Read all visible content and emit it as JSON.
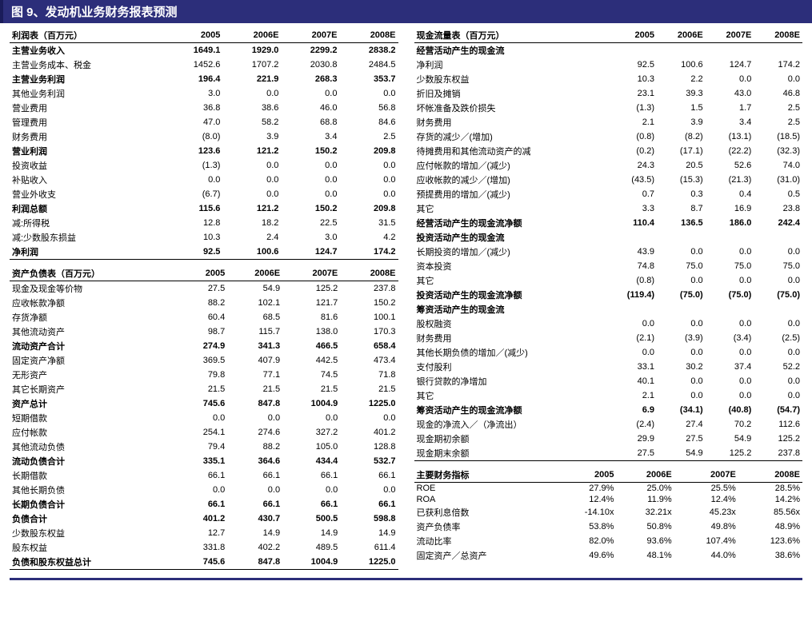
{
  "title": "图 9、发动机业务财务报表预测",
  "colors": {
    "header_bg": "#2c2e7a",
    "header_text": "#ffffff"
  },
  "years": [
    "2005",
    "2006E",
    "2007E",
    "2008E"
  ],
  "income": {
    "header": "利润表（百万元）",
    "rows": [
      {
        "label": "主营业务收入",
        "v": [
          "1649.1",
          "1929.0",
          "2299.2",
          "2838.2"
        ],
        "bold": true,
        "topline": true
      },
      {
        "label": "主营业务成本、税金",
        "v": [
          "1452.6",
          "1707.2",
          "2030.8",
          "2484.5"
        ]
      },
      {
        "label": "主营业务利润",
        "v": [
          "196.4",
          "221.9",
          "268.3",
          "353.7"
        ],
        "bold": true
      },
      {
        "label": "其他业务利润",
        "v": [
          "3.0",
          "0.0",
          "0.0",
          "0.0"
        ]
      },
      {
        "label": "营业费用",
        "v": [
          "36.8",
          "38.6",
          "46.0",
          "56.8"
        ]
      },
      {
        "label": "管理费用",
        "v": [
          "47.0",
          "58.2",
          "68.8",
          "84.6"
        ]
      },
      {
        "label": "财务费用",
        "v": [
          "(8.0)",
          "3.9",
          "3.4",
          "2.5"
        ]
      },
      {
        "label": "营业利润",
        "v": [
          "123.6",
          "121.2",
          "150.2",
          "209.8"
        ],
        "bold": true
      },
      {
        "label": "投资收益",
        "v": [
          "(1.3)",
          "0.0",
          "0.0",
          "0.0"
        ]
      },
      {
        "label": "补贴收入",
        "v": [
          "0.0",
          "0.0",
          "0.0",
          "0.0"
        ]
      },
      {
        "label": "营业外收支",
        "v": [
          "(6.7)",
          "0.0",
          "0.0",
          "0.0"
        ]
      },
      {
        "label": "利润总额",
        "v": [
          "115.6",
          "121.2",
          "150.2",
          "209.8"
        ],
        "bold": true
      },
      {
        "label": "减:所得税",
        "v": [
          "12.8",
          "18.2",
          "22.5",
          "31.5"
        ]
      },
      {
        "label": "减:少数股东损益",
        "v": [
          "10.3",
          "2.4",
          "3.0",
          "4.2"
        ]
      },
      {
        "label": "净利润",
        "v": [
          "92.5",
          "100.6",
          "124.7",
          "174.2"
        ],
        "bold": true,
        "bottomline": true
      }
    ]
  },
  "balance": {
    "header": "资产负债表（百万元）",
    "rows": [
      {
        "label": "现金及现金等价物",
        "v": [
          "27.5",
          "54.9",
          "125.2",
          "237.8"
        ],
        "topline": true
      },
      {
        "label": "应收帐款净额",
        "v": [
          "88.2",
          "102.1",
          "121.7",
          "150.2"
        ]
      },
      {
        "label": "存货净额",
        "v": [
          "60.4",
          "68.5",
          "81.6",
          "100.1"
        ]
      },
      {
        "label": "其他流动资产",
        "v": [
          "98.7",
          "115.7",
          "138.0",
          "170.3"
        ]
      },
      {
        "label": "流动资产合计",
        "v": [
          "274.9",
          "341.3",
          "466.5",
          "658.4"
        ],
        "bold": true
      },
      {
        "label": "固定资产净额",
        "v": [
          "369.5",
          "407.9",
          "442.5",
          "473.4"
        ]
      },
      {
        "label": "无形资产",
        "v": [
          "79.8",
          "77.1",
          "74.5",
          "71.8"
        ]
      },
      {
        "label": "其它长期资产",
        "v": [
          "21.5",
          "21.5",
          "21.5",
          "21.5"
        ]
      },
      {
        "label": "资产总计",
        "v": [
          "745.6",
          "847.8",
          "1004.9",
          "1225.0"
        ],
        "bold": true
      },
      {
        "label": "短期借款",
        "v": [
          "0.0",
          "0.0",
          "0.0",
          "0.0"
        ]
      },
      {
        "label": "应付帐款",
        "v": [
          "254.1",
          "274.6",
          "327.2",
          "401.2"
        ]
      },
      {
        "label": "其他流动负债",
        "v": [
          "79.4",
          "88.2",
          "105.0",
          "128.8"
        ]
      },
      {
        "label": "流动负债合计",
        "v": [
          "335.1",
          "364.6",
          "434.4",
          "532.7"
        ],
        "bold": true
      },
      {
        "label": "长期借款",
        "v": [
          "66.1",
          "66.1",
          "66.1",
          "66.1"
        ]
      },
      {
        "label": "其他长期负债",
        "v": [
          "0.0",
          "0.0",
          "0.0",
          "0.0"
        ]
      },
      {
        "label": "长期负债合计",
        "v": [
          "66.1",
          "66.1",
          "66.1",
          "66.1"
        ],
        "bold": true
      },
      {
        "label": "负债合计",
        "v": [
          "401.2",
          "430.7",
          "500.5",
          "598.8"
        ],
        "bold": true
      },
      {
        "label": "少数股东权益",
        "v": [
          "12.7",
          "14.9",
          "14.9",
          "14.9"
        ]
      },
      {
        "label": "股东权益",
        "v": [
          "331.8",
          "402.2",
          "489.5",
          "611.4"
        ]
      },
      {
        "label": "负债和股东权益总计",
        "v": [
          "745.6",
          "847.8",
          "1004.9",
          "1225.0"
        ],
        "bold": true,
        "bottomline": true
      }
    ]
  },
  "cashflow": {
    "header": "现金流量表（百万元）",
    "sections": [
      {
        "label": "经营活动产生的现金流",
        "rows": [
          {
            "label": "净利润",
            "v": [
              "92.5",
              "100.6",
              "124.7",
              "174.2"
            ]
          },
          {
            "label": "少数股东权益",
            "v": [
              "10.3",
              "2.2",
              "0.0",
              "0.0"
            ]
          },
          {
            "label": "折旧及摊销",
            "v": [
              "23.1",
              "39.3",
              "43.0",
              "46.8"
            ]
          },
          {
            "label": "坏帐准备及跌价损失",
            "v": [
              "(1.3)",
              "1.5",
              "1.7",
              "2.5"
            ]
          },
          {
            "label": "财务费用",
            "v": [
              "2.1",
              "3.9",
              "3.4",
              "2.5"
            ]
          },
          {
            "label": "存货的减少／(增加)",
            "v": [
              "(0.8)",
              "(8.2)",
              "(13.1)",
              "(18.5)"
            ]
          },
          {
            "label": "待摊费用和其他流动资产的减",
            "v": [
              "(0.2)",
              "(17.1)",
              "(22.2)",
              "(32.3)"
            ]
          },
          {
            "label": "应付帐款的增加／(减少)",
            "v": [
              "24.3",
              "20.5",
              "52.6",
              "74.0"
            ]
          },
          {
            "label": "应收帐款的减少／(增加)",
            "v": [
              "(43.5)",
              "(15.3)",
              "(21.3)",
              "(31.0)"
            ]
          },
          {
            "label": "预提费用的增加／(减少)",
            "v": [
              "0.7",
              "0.3",
              "0.4",
              "0.5"
            ]
          },
          {
            "label": "其它",
            "v": [
              "3.3",
              "8.7",
              "16.9",
              "23.8"
            ]
          },
          {
            "label": "经营活动产生的现金流净额",
            "v": [
              "110.4",
              "136.5",
              "186.0",
              "242.4"
            ],
            "bold": true
          }
        ]
      },
      {
        "label": "投资活动产生的现金流",
        "rows": [
          {
            "label": "长期投资的增加／(减少)",
            "v": [
              "43.9",
              "0.0",
              "0.0",
              "0.0"
            ]
          },
          {
            "label": "资本投资",
            "v": [
              "74.8",
              "75.0",
              "75.0",
              "75.0"
            ]
          },
          {
            "label": "其它",
            "v": [
              "(0.8)",
              "0.0",
              "0.0",
              "0.0"
            ]
          },
          {
            "label": "投资活动产生的现金流净额",
            "v": [
              "(119.4)",
              "(75.0)",
              "(75.0)",
              "(75.0)"
            ],
            "bold": true
          }
        ]
      },
      {
        "label": "筹资活动产生的现金流",
        "rows": [
          {
            "label": "股权融资",
            "v": [
              "0.0",
              "0.0",
              "0.0",
              "0.0"
            ]
          },
          {
            "label": "财务费用",
            "v": [
              "(2.1)",
              "(3.9)",
              "(3.4)",
              "(2.5)"
            ]
          },
          {
            "label": "其他长期负债的增加／(减少)",
            "v": [
              "0.0",
              "0.0",
              "0.0",
              "0.0"
            ]
          },
          {
            "label": "支付股利",
            "v": [
              "33.1",
              "30.2",
              "37.4",
              "52.2"
            ]
          },
          {
            "label": "银行贷款的净增加",
            "v": [
              "40.1",
              "0.0",
              "0.0",
              "0.0"
            ]
          },
          {
            "label": "其它",
            "v": [
              "2.1",
              "0.0",
              "0.0",
              "0.0"
            ]
          },
          {
            "label": "筹资活动产生的现金流净额",
            "v": [
              "6.9",
              "(34.1)",
              "(40.8)",
              "(54.7)"
            ],
            "bold": true
          }
        ]
      }
    ],
    "tail": [
      {
        "label": "现金的净流入／（净流出）",
        "v": [
          "(2.4)",
          "27.4",
          "70.2",
          "112.6"
        ]
      },
      {
        "label": "现金期初余额",
        "v": [
          "29.9",
          "27.5",
          "54.9",
          "125.2"
        ]
      },
      {
        "label": "现金期末余额",
        "v": [
          "27.5",
          "54.9",
          "125.2",
          "237.8"
        ],
        "bottomline": true
      }
    ]
  },
  "ratios": {
    "header": "主要财务指标",
    "rows": [
      {
        "label": "ROE",
        "v": [
          "27.9%",
          "25.0%",
          "25.5%",
          "28.5%"
        ],
        "topline": true
      },
      {
        "label": "ROA",
        "v": [
          "12.4%",
          "11.9%",
          "12.4%",
          "14.2%"
        ]
      },
      {
        "label": "已获利息倍数",
        "v": [
          "-14.10x",
          "32.21x",
          "45.23x",
          "85.56x"
        ]
      },
      {
        "label": "资产负债率",
        "v": [
          "53.8%",
          "50.8%",
          "49.8%",
          "48.9%"
        ]
      },
      {
        "label": "流动比率",
        "v": [
          "82.0%",
          "93.6%",
          "107.4%",
          "123.6%"
        ]
      },
      {
        "label": "固定资产／总资产",
        "v": [
          "49.6%",
          "48.1%",
          "44.0%",
          "38.6%"
        ]
      }
    ]
  }
}
